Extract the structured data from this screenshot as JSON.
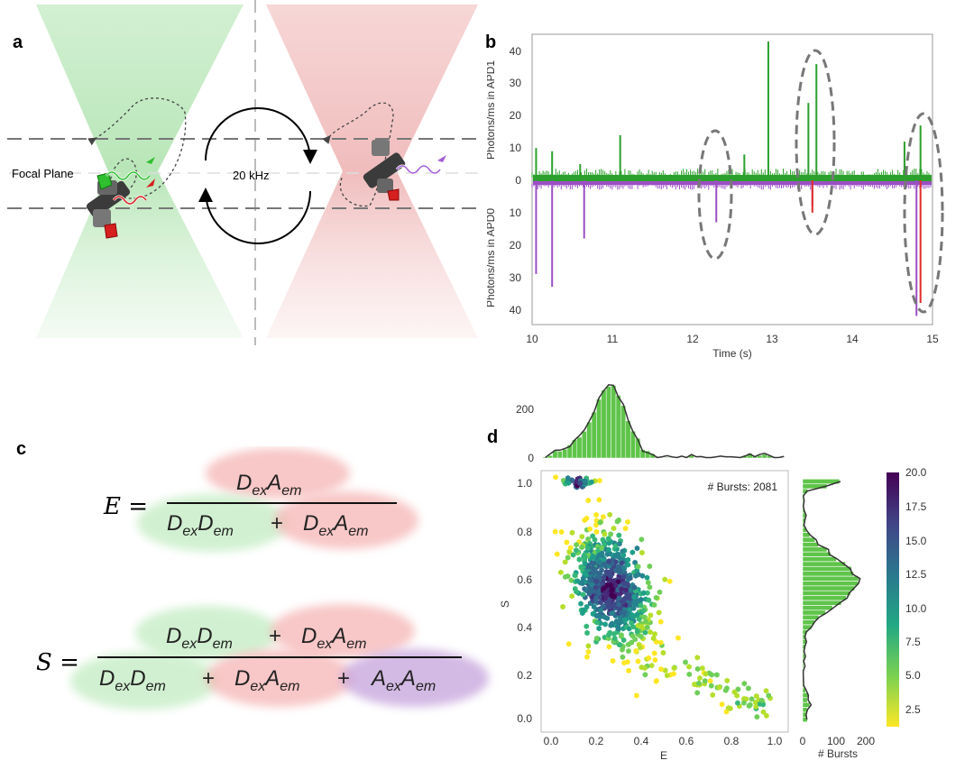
{
  "panels": {
    "a": "a",
    "b": "b",
    "c": "c",
    "d": "d"
  },
  "panel_a": {
    "focal_plane_label": "Focal Plane",
    "frequency_label": "20 kHz"
  },
  "panel_b": {
    "ylabel_top": "Photons/ms in APD1",
    "ylabel_bottom": "Photons/ms in APD0",
    "xlabel": "Time (s)",
    "xticks": [
      "10",
      "11",
      "12",
      "13",
      "14",
      "15"
    ],
    "yticks_top": [
      "40",
      "30",
      "20",
      "10",
      "0"
    ],
    "yticks_bottom": [
      "10",
      "20",
      "30",
      "40"
    ],
    "colors": {
      "green": "#2ca02c",
      "purple": "#9b4fc4",
      "red": "#e32b2b"
    }
  },
  "panel_c": {
    "E_lhs": "E =",
    "S_lhs": "S =",
    "DexAem": "DexAem",
    "DexDem": "DexDem",
    "AexAem": "AexAem",
    "plus": "+"
  },
  "panel_d": {
    "annotation": "# Bursts: 2081",
    "xlabel": "E",
    "ylabel": "S",
    "right_xlabel": "# Bursts",
    "xticks": [
      "0.0",
      "0.2",
      "0.4",
      "0.6",
      "0.8",
      "1.0"
    ],
    "yticks": [
      "1.0",
      "0.8",
      "0.6",
      "0.4",
      "0.2",
      "0.0"
    ],
    "top_yticks": [
      "200",
      "0"
    ],
    "right_xticks": [
      "0",
      "100",
      "200"
    ],
    "colorbar_ticks": [
      "20.0",
      "17.5",
      "15.0",
      "12.5",
      "10.0",
      "7.5",
      "5.0",
      "2.5"
    ]
  },
  "chart_data": [
    {
      "type": "line",
      "title": "",
      "xlabel": "Time (s)",
      "ylabel": "Photons/ms in APD1 / Photons/ms in APD0",
      "xlim": [
        10,
        15
      ],
      "ylim_top": [
        0,
        45
      ],
      "ylim_bottom": [
        0,
        45
      ],
      "series": [
        {
          "channel": "APD1",
          "color": "#2ca02c",
          "peaks_x": [
            10.05,
            10.25,
            10.6,
            11.1,
            12.65,
            12.95,
            13.45,
            13.55,
            14.65,
            14.85
          ],
          "peaks_y": [
            10,
            9,
            5,
            14,
            8,
            43,
            24,
            36,
            12,
            17
          ]
        },
        {
          "channel": "APD0",
          "color": "#9b4fc4",
          "peaks_x": [
            10.05,
            10.25,
            10.65,
            12.3,
            13.5,
            14.8
          ],
          "peaks_y": [
            29,
            33,
            18,
            13,
            8,
            42
          ]
        },
        {
          "channel": "APD0",
          "color": "#e32b2b",
          "peaks_x": [
            13.5,
            14.85
          ],
          "peaks_y": [
            10,
            38
          ]
        }
      ]
    },
    {
      "type": "heatmap",
      "xlabel": "E",
      "ylabel": "S",
      "xlim": [
        0,
        1
      ],
      "ylim": [
        0,
        1
      ],
      "colorbar_range": [
        2.5,
        20.0
      ],
      "total_bursts": 2081,
      "main_cluster_center": [
        0.27,
        0.55
      ],
      "donor_only_cluster": [
        0.12,
        1.0
      ],
      "acceptor_only_tail": [
        0.9,
        0.07
      ],
      "top_histogram": {
        "x_peak": 0.27,
        "y_peak": 290,
        "yticks": [
          0,
          200
        ]
      },
      "right_histogram": {
        "y_peaks": [
          1.0,
          0.58
        ],
        "x_peaks": [
          120,
          180
        ],
        "xticks": [
          0,
          100,
          200
        ]
      }
    }
  ]
}
